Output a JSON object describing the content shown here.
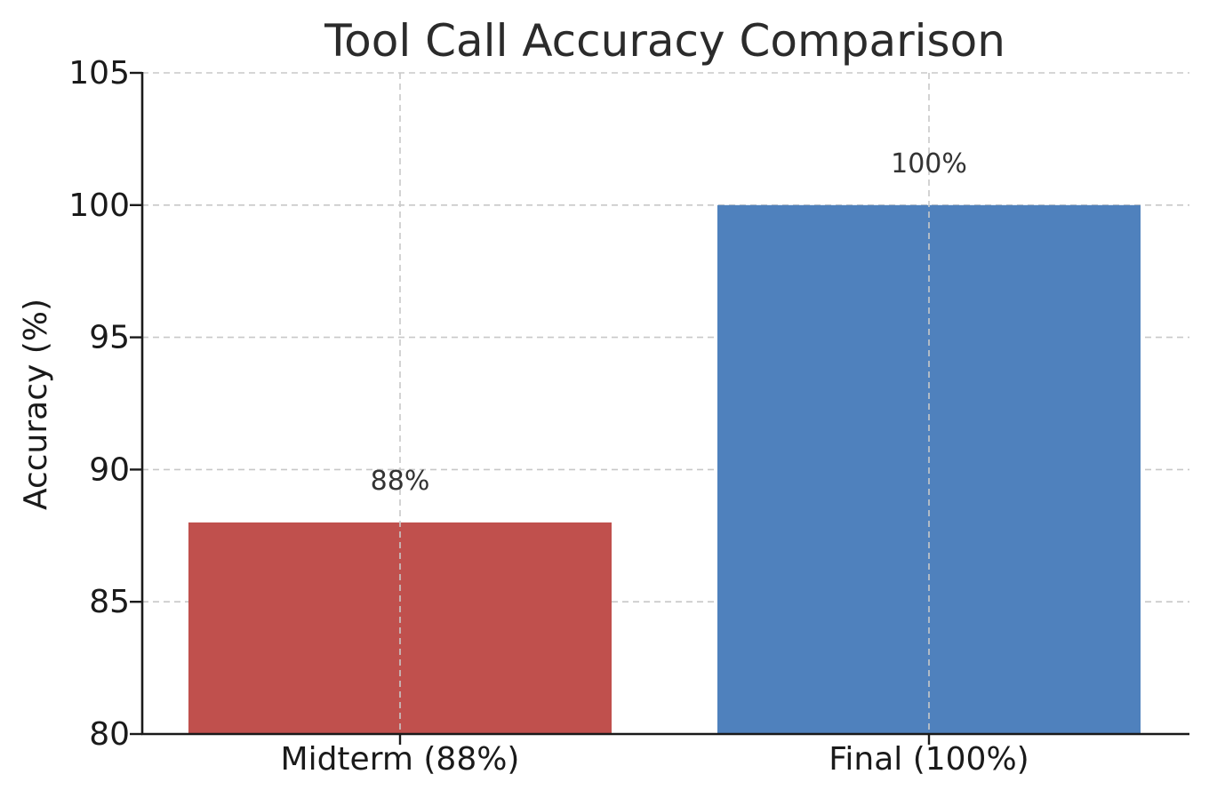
{
  "chart_data": {
    "type": "bar",
    "title": "Tool Call Accuracy Comparison",
    "xlabel": "",
    "ylabel": "Accuracy (%)",
    "ylim": [
      80,
      105
    ],
    "yticks": [
      80,
      85,
      90,
      95,
      100,
      105
    ],
    "categories": [
      "Midterm (88%)",
      "Final (100%)"
    ],
    "values": [
      88,
      100
    ],
    "value_labels": [
      "88%",
      "100%"
    ],
    "colors": [
      "#c0504d",
      "#4f81bd"
    ],
    "grid": true
  }
}
